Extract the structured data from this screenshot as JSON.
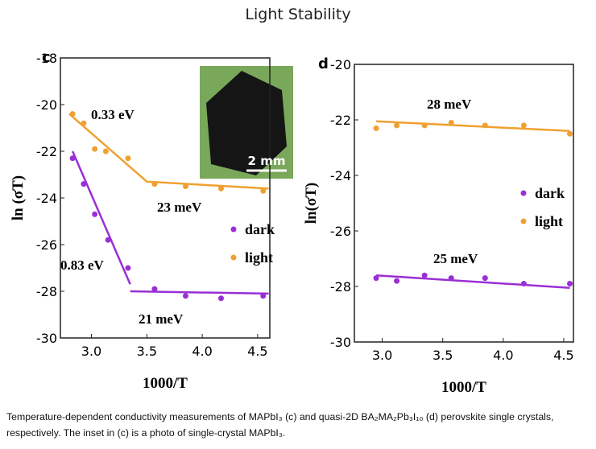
{
  "title": "Light Stability",
  "caption": "Temperature-dependent conductivity measurements of MAPbI₃ (c) and quasi-2D BA₂MA₂Pb₃I₁₀ (d) perovskite single crystals, respectively. The inset in (c) is a photo of single-crystal MAPbI₃.",
  "chart_data": [
    {
      "type": "scatter",
      "panel_label": "c",
      "xlabel": "1000/T",
      "ylabel": "ln (σT)",
      "inset_label": "2 mm",
      "xlim": [
        2.72,
        4.61
      ],
      "ylim": [
        -30,
        -18
      ],
      "xticks": [
        {
          "value": 3,
          "label": "3.0"
        },
        3.5,
        {
          "value": 4,
          "label": "4.0"
        },
        4.5
      ],
      "yticks": [
        -30,
        -28,
        -26,
        -24,
        -22,
        -20,
        -18
      ],
      "legend": "right",
      "series": [
        {
          "name": "dark",
          "color": "#9a2fd6",
          "x": [
            2.83,
            2.93,
            3.03,
            3.15,
            3.33,
            3.57,
            3.85,
            4.17,
            4.55
          ],
          "values": [
            -22.3,
            -23.4,
            -24.7,
            -25.8,
            -27.0,
            -27.9,
            -28.2,
            -28.3,
            -28.2
          ]
        },
        {
          "name": "light",
          "color": "#f0a030",
          "x": [
            2.83,
            2.93,
            3.03,
            3.13,
            3.33,
            3.57,
            3.85,
            4.17,
            4.55
          ],
          "values": [
            -20.4,
            -20.8,
            -21.9,
            -22.0,
            -22.3,
            -23.4,
            -23.5,
            -23.6,
            -23.7
          ]
        },
        {
          "mode": "line",
          "color": "#9a2fd6",
          "x": [
            2.83,
            3.35,
            null,
            3.35,
            4.6
          ],
          "values": [
            -22.0,
            -27.7,
            null,
            -28.0,
            -28.1
          ]
        },
        {
          "mode": "line",
          "color": "#f0a030",
          "x": [
            2.8,
            3.5,
            4.6
          ],
          "values": [
            -20.4,
            -23.3,
            -23.6
          ]
        }
      ],
      "annotations": [
        "0.33 eV",
        "23 meV",
        "0.83 eV",
        "21 meV"
      ]
    },
    {
      "type": "scatter",
      "panel_label": "d",
      "xlabel": "1000/T",
      "ylabel": "ln(σT)",
      "xlim": [
        2.77,
        4.58
      ],
      "ylim": [
        -30,
        -20
      ],
      "xticks": [
        {
          "value": 3,
          "label": "3.0"
        },
        3.5,
        {
          "value": 4,
          "label": "4.0"
        },
        4.5
      ],
      "yticks": [
        -30,
        -28,
        -26,
        -24,
        -22,
        -20
      ],
      "legend": "right",
      "series": [
        {
          "name": "dark",
          "color": "#9a2fd6",
          "x": [
            2.95,
            3.12,
            3.35,
            3.57,
            3.85,
            4.17,
            4.55
          ],
          "values": [
            -27.7,
            -27.8,
            -27.6,
            -27.7,
            -27.7,
            -27.9,
            -27.9
          ]
        },
        {
          "name": "light",
          "color": "#f0a030",
          "x": [
            2.95,
            3.12,
            3.35,
            3.57,
            3.85,
            4.17,
            4.55
          ],
          "values": [
            -22.3,
            -22.2,
            -22.2,
            -22.1,
            -22.2,
            -22.2,
            -22.5
          ]
        },
        {
          "mode": "line",
          "color": "#9a2fd6",
          "x": [
            2.95,
            4.55
          ],
          "values": [
            -27.6,
            -28.05
          ]
        },
        {
          "mode": "line",
          "color": "#f0a030",
          "x": [
            2.95,
            4.55
          ],
          "values": [
            -22.05,
            -22.4
          ]
        }
      ],
      "annotations": [
        "28 meV",
        "25 meV"
      ]
    }
  ]
}
